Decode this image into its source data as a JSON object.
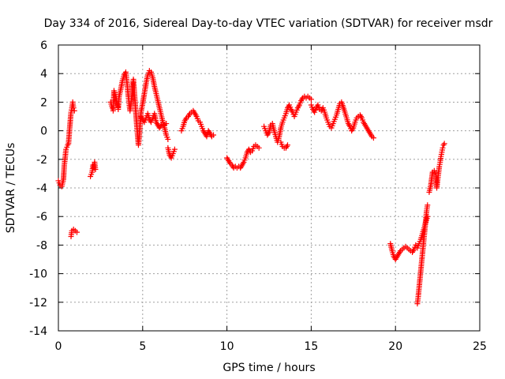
{
  "chart_data": {
    "type": "scatter",
    "title": "Day 334 of 2016, Sidereal Day-to-day VTEC variation (SDTVAR) for receiver msdr",
    "xlabel": "GPS time / hours",
    "ylabel": "SDTVAR / TECUs",
    "xlim": [
      0,
      25
    ],
    "ylim": [
      -14,
      6
    ],
    "xticks": [
      0,
      5,
      10,
      15,
      20,
      25
    ],
    "yticks": [
      -14,
      -12,
      -10,
      -8,
      -6,
      -4,
      -2,
      0,
      2,
      4,
      6
    ],
    "grid": true,
    "marker": "+",
    "series_color": "#ff0000",
    "segments": [
      [
        [
          0.0,
          -3.5
        ],
        [
          0.1,
          -3.8
        ],
        [
          0.2,
          -3.9
        ],
        [
          0.3,
          -3.4
        ],
        [
          0.35,
          -2.4
        ],
        [
          0.4,
          -1.9
        ],
        [
          0.45,
          -1.3
        ],
        [
          0.55,
          -1.0
        ],
        [
          0.6,
          -0.9
        ],
        [
          0.65,
          -0.1
        ],
        [
          0.7,
          0.6
        ],
        [
          0.75,
          1.3
        ],
        [
          0.8,
          1.6
        ],
        [
          0.85,
          2.0
        ],
        [
          0.9,
          1.6
        ],
        [
          0.95,
          1.4
        ]
      ],
      [
        [
          0.75,
          -7.4
        ],
        [
          0.8,
          -7.0
        ],
        [
          0.9,
          -6.9
        ],
        [
          1.1,
          -7.1
        ]
      ],
      [
        [
          1.9,
          -3.2
        ],
        [
          2.0,
          -2.9
        ],
        [
          2.05,
          -2.4
        ],
        [
          2.1,
          -2.6
        ],
        [
          2.15,
          -2.2
        ],
        [
          2.2,
          -2.7
        ]
      ],
      [
        [
          3.1,
          2.0
        ],
        [
          3.2,
          1.6
        ],
        [
          3.25,
          1.4
        ],
        [
          3.3,
          2.8
        ],
        [
          3.4,
          2.4
        ],
        [
          3.5,
          1.8
        ],
        [
          3.55,
          1.5
        ],
        [
          3.6,
          2.4
        ],
        [
          3.7,
          2.9
        ],
        [
          3.8,
          3.5
        ],
        [
          3.9,
          3.9
        ],
        [
          4.0,
          4.1
        ],
        [
          4.05,
          3.6
        ],
        [
          4.1,
          3.0
        ],
        [
          4.15,
          2.4
        ],
        [
          4.2,
          1.9
        ],
        [
          4.25,
          1.4
        ],
        [
          4.3,
          1.8
        ],
        [
          4.35,
          2.4
        ],
        [
          4.4,
          3.2
        ],
        [
          4.45,
          3.6
        ],
        [
          4.5,
          2.8
        ],
        [
          4.55,
          2.0
        ],
        [
          4.6,
          1.2
        ],
        [
          4.65,
          0.4
        ],
        [
          4.7,
          -0.3
        ],
        [
          4.75,
          -1.0
        ],
        [
          4.8,
          -0.4
        ],
        [
          4.85,
          0.5
        ],
        [
          4.9,
          1.3
        ],
        [
          5.0,
          1.9
        ],
        [
          5.1,
          2.6
        ],
        [
          5.2,
          3.3
        ],
        [
          5.3,
          3.9
        ],
        [
          5.4,
          4.2
        ],
        [
          5.5,
          4.1
        ],
        [
          5.6,
          3.7
        ],
        [
          5.7,
          3.1
        ],
        [
          5.8,
          2.6
        ],
        [
          5.9,
          2.1
        ],
        [
          6.0,
          1.6
        ],
        [
          6.1,
          1.1
        ],
        [
          6.2,
          0.6
        ],
        [
          6.3,
          0.2
        ],
        [
          6.4,
          -0.3
        ],
        [
          6.5,
          -0.6
        ]
      ],
      [
        [
          4.9,
          1.0
        ],
        [
          5.0,
          0.8
        ],
        [
          5.1,
          0.6
        ],
        [
          5.2,
          0.9
        ],
        [
          5.3,
          1.2
        ],
        [
          5.4,
          0.8
        ],
        [
          5.5,
          0.6
        ],
        [
          5.6,
          0.9
        ],
        [
          5.7,
          1.2
        ],
        [
          5.8,
          0.6
        ],
        [
          5.9,
          0.4
        ],
        [
          6.0,
          0.2
        ],
        [
          6.1,
          0.4
        ],
        [
          6.3,
          0.4
        ],
        [
          6.4,
          0.5
        ]
      ],
      [
        [
          6.5,
          -1.2
        ],
        [
          6.6,
          -1.7
        ],
        [
          6.7,
          -1.9
        ],
        [
          6.8,
          -1.6
        ],
        [
          6.9,
          -1.3
        ]
      ],
      [
        [
          7.3,
          0.0
        ],
        [
          7.4,
          0.3
        ],
        [
          7.5,
          0.7
        ],
        [
          7.6,
          0.9
        ],
        [
          7.7,
          1.0
        ],
        [
          7.8,
          1.2
        ],
        [
          7.9,
          1.3
        ],
        [
          8.0,
          1.4
        ],
        [
          8.1,
          1.2
        ],
        [
          8.2,
          1.0
        ],
        [
          8.3,
          0.7
        ],
        [
          8.4,
          0.6
        ],
        [
          8.5,
          0.3
        ],
        [
          8.6,
          0.0
        ],
        [
          8.7,
          -0.2
        ],
        [
          8.8,
          -0.4
        ],
        [
          8.9,
          0.0
        ],
        [
          9.0,
          -0.2
        ],
        [
          9.1,
          -0.4
        ],
        [
          9.2,
          -0.3
        ]
      ],
      [
        [
          10.0,
          -1.9
        ],
        [
          10.1,
          -2.1
        ],
        [
          10.2,
          -2.3
        ],
        [
          10.3,
          -2.4
        ],
        [
          10.4,
          -2.6
        ],
        [
          10.5,
          -2.5
        ],
        [
          10.6,
          -2.6
        ],
        [
          10.7,
          -2.5
        ],
        [
          10.8,
          -2.6
        ],
        [
          10.9,
          -2.4
        ],
        [
          11.0,
          -2.2
        ],
        [
          11.1,
          -1.9
        ],
        [
          11.2,
          -1.5
        ],
        [
          11.3,
          -1.3
        ],
        [
          11.4,
          -1.5
        ],
        [
          11.5,
          -1.4
        ],
        [
          11.6,
          -1.1
        ],
        [
          11.7,
          -1.0
        ],
        [
          11.8,
          -1.1
        ],
        [
          11.9,
          -1.2
        ]
      ],
      [
        [
          12.2,
          0.3
        ],
        [
          12.3,
          0.0
        ],
        [
          12.4,
          -0.3
        ],
        [
          12.5,
          -0.1
        ],
        [
          12.6,
          0.4
        ],
        [
          12.7,
          0.5
        ],
        [
          12.8,
          0.0
        ],
        [
          12.9,
          -0.4
        ],
        [
          13.0,
          -0.8
        ],
        [
          13.1,
          -0.4
        ],
        [
          13.2,
          0.2
        ],
        [
          13.3,
          0.6
        ],
        [
          13.4,
          0.9
        ],
        [
          13.5,
          1.2
        ],
        [
          13.6,
          1.6
        ],
        [
          13.7,
          1.8
        ],
        [
          13.8,
          1.5
        ],
        [
          13.9,
          1.3
        ],
        [
          14.0,
          1.0
        ],
        [
          14.1,
          1.3
        ],
        [
          14.2,
          1.6
        ],
        [
          14.3,
          1.8
        ],
        [
          14.4,
          2.1
        ],
        [
          14.5,
          2.3
        ],
        [
          14.6,
          2.4
        ],
        [
          14.7,
          2.3
        ],
        [
          14.8,
          2.4
        ],
        [
          14.9,
          2.3
        ],
        [
          15.0,
          2.2
        ]
      ],
      [
        [
          13.2,
          -0.8
        ],
        [
          13.3,
          -1.1
        ],
        [
          13.4,
          -1.2
        ],
        [
          13.5,
          -1.2
        ],
        [
          13.6,
          -1.0
        ]
      ],
      [
        [
          15.0,
          1.8
        ],
        [
          15.1,
          1.5
        ],
        [
          15.2,
          1.3
        ],
        [
          15.3,
          1.6
        ],
        [
          15.4,
          1.8
        ],
        [
          15.5,
          1.5
        ],
        [
          15.6,
          1.4
        ],
        [
          15.7,
          1.6
        ],
        [
          15.8,
          1.3
        ],
        [
          15.9,
          0.9
        ],
        [
          16.0,
          0.6
        ],
        [
          16.1,
          0.3
        ],
        [
          16.2,
          0.2
        ],
        [
          16.3,
          0.5
        ],
        [
          16.4,
          0.8
        ],
        [
          16.5,
          1.1
        ],
        [
          16.6,
          1.5
        ],
        [
          16.7,
          1.9
        ],
        [
          16.8,
          2.0
        ],
        [
          17.0,
          1.3
        ],
        [
          17.1,
          0.9
        ],
        [
          17.2,
          0.5
        ],
        [
          17.3,
          0.3
        ],
        [
          17.4,
          0.0
        ],
        [
          17.5,
          0.2
        ],
        [
          17.6,
          0.6
        ],
        [
          17.7,
          0.9
        ],
        [
          17.8,
          1.0
        ]
      ],
      [
        [
          17.9,
          1.1
        ],
        [
          18.0,
          0.9
        ],
        [
          18.1,
          0.6
        ],
        [
          18.2,
          0.4
        ],
        [
          18.3,
          0.2
        ],
        [
          18.4,
          0.0
        ],
        [
          18.5,
          -0.2
        ],
        [
          18.6,
          -0.4
        ],
        [
          18.7,
          -0.5
        ]
      ],
      [
        [
          19.7,
          -7.9
        ],
        [
          19.8,
          -8.4
        ],
        [
          19.9,
          -8.8
        ],
        [
          20.0,
          -9.0
        ],
        [
          20.1,
          -8.8
        ],
        [
          20.2,
          -8.6
        ],
        [
          20.3,
          -8.4
        ],
        [
          20.4,
          -8.3
        ],
        [
          20.5,
          -8.2
        ],
        [
          20.6,
          -8.1
        ],
        [
          20.7,
          -8.2
        ],
        [
          20.8,
          -8.3
        ],
        [
          20.9,
          -8.4
        ],
        [
          21.0,
          -8.5
        ],
        [
          21.1,
          -8.3
        ],
        [
          21.2,
          -8.0
        ]
      ],
      [
        [
          21.3,
          -12.1
        ],
        [
          21.35,
          -11.6
        ],
        [
          21.4,
          -11.0
        ],
        [
          21.45,
          -10.4
        ],
        [
          21.5,
          -9.8
        ],
        [
          21.55,
          -9.2
        ],
        [
          21.6,
          -8.6
        ],
        [
          21.65,
          -8.0
        ],
        [
          21.7,
          -7.4
        ],
        [
          21.75,
          -6.8
        ],
        [
          21.8,
          -6.2
        ],
        [
          21.85,
          -5.6
        ],
        [
          21.9,
          -5.2
        ]
      ],
      [
        [
          21.3,
          -8.2
        ],
        [
          21.4,
          -7.9
        ],
        [
          21.5,
          -7.6
        ],
        [
          21.6,
          -7.2
        ],
        [
          21.7,
          -6.8
        ],
        [
          21.8,
          -6.4
        ],
        [
          21.9,
          -6.0
        ]
      ],
      [
        [
          22.0,
          -4.3
        ],
        [
          22.1,
          -3.8
        ],
        [
          22.2,
          -2.9
        ],
        [
          22.3,
          -2.8
        ],
        [
          22.4,
          -3.1
        ],
        [
          22.45,
          -4.0
        ],
        [
          22.5,
          -3.5
        ],
        [
          22.55,
          -3.0
        ],
        [
          22.6,
          -2.5
        ],
        [
          22.65,
          -2.2
        ],
        [
          22.7,
          -1.8
        ],
        [
          22.75,
          -1.5
        ],
        [
          22.8,
          -1.2
        ],
        [
          22.85,
          -1.0
        ],
        [
          22.9,
          -0.9
        ]
      ]
    ]
  }
}
